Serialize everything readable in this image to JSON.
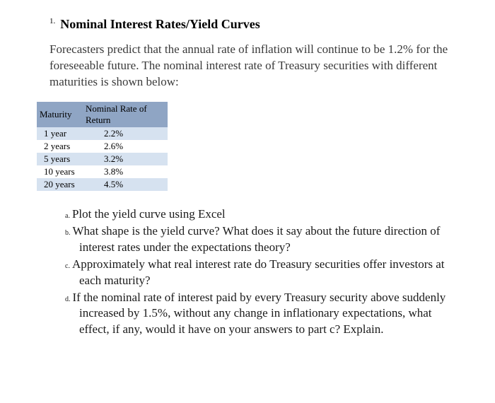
{
  "heading": {
    "number": "1.",
    "title": "Nominal Interest Rates/Yield Curves"
  },
  "intro": "Forecasters predict that the annual rate of inflation will continue to be 1.2% for the foreseeable future. The nominal interest rate of Treasury securities with different maturities is shown below:",
  "table": {
    "header_bg": "#8fa5c4",
    "row_alt_bg": "#d6e2f0",
    "row_bg": "#ffffff",
    "headers": [
      "Maturity",
      "Nominal Rate of Return"
    ],
    "rows": [
      {
        "maturity": "1 year",
        "rate": "2.2%"
      },
      {
        "maturity": "2 years",
        "rate": "2.6%"
      },
      {
        "maturity": "5 years",
        "rate": "3.2%"
      },
      {
        "maturity": "10 years",
        "rate": "3.8%"
      },
      {
        "maturity": "20 years",
        "rate": "4.5%"
      }
    ]
  },
  "questions": [
    {
      "letter": "a.",
      "text": "Plot the yield curve using Excel"
    },
    {
      "letter": "b.",
      "text": "What shape is the yield curve? What does it say about the future direction of interest rates under the expectations theory?"
    },
    {
      "letter": "c.",
      "text": "Approximately what real interest rate do Treasury securities offer investors at each maturity?"
    },
    {
      "letter": "d.",
      "text": "If the nominal rate of interest paid by every Treasury security above suddenly increased by 1.5%, without any change in inflationary expectations, what effect, if any, would it have on your answers to part c? Explain."
    }
  ]
}
